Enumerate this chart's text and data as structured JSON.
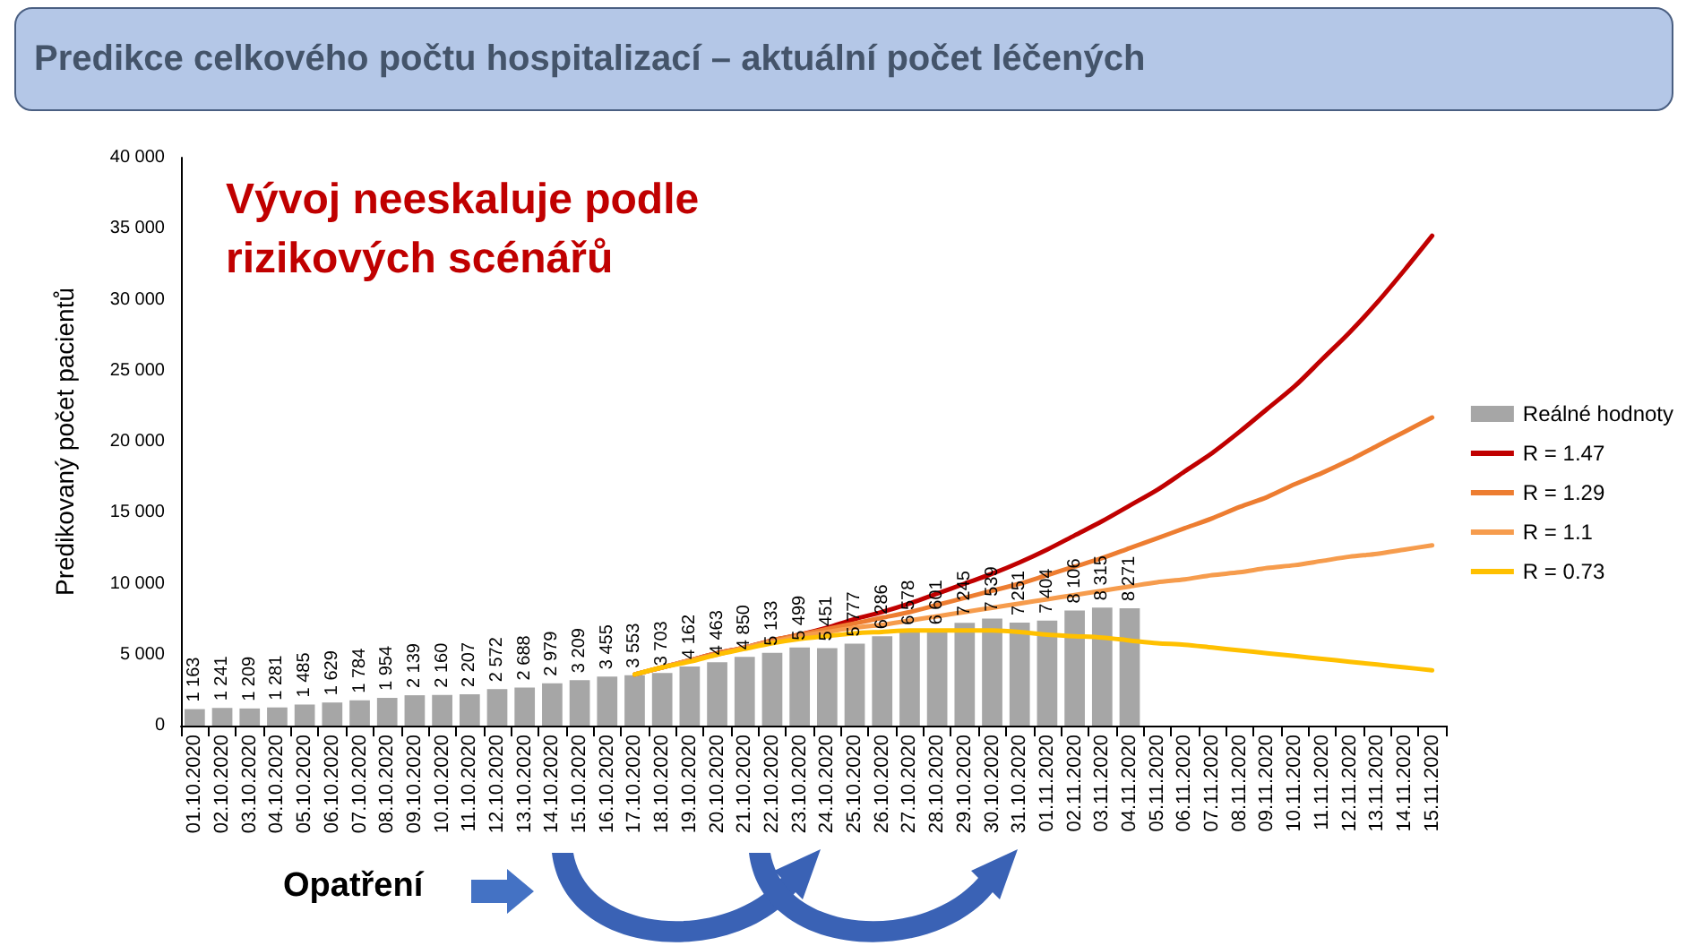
{
  "chart_data": {
    "type": "bar",
    "title": "Predikce celkového počtu hospitalizací – aktuální počet léčených",
    "ylabel": "Predikovaný počet pacientů",
    "annotations": [
      "Vývoj neeskaluje podle rizikových scénářů",
      "Opatření"
    ],
    "categories": [
      "01.10.2020",
      "02.10.2020",
      "03.10.2020",
      "04.10.2020",
      "05.10.2020",
      "06.10.2020",
      "07.10.2020",
      "08.10.2020",
      "09.10.2020",
      "10.10.2020",
      "11.10.2020",
      "12.10.2020",
      "13.10.2020",
      "14.10.2020",
      "15.10.2020",
      "16.10.2020",
      "17.10.2020",
      "18.10.2020",
      "19.10.2020",
      "20.10.2020",
      "21.10.2020",
      "22.10.2020",
      "23.10.2020",
      "24.10.2020",
      "25.10.2020",
      "26.10.2020",
      "27.10.2020",
      "28.10.2020",
      "29.10.2020",
      "30.10.2020",
      "31.10.2020",
      "01.11.2020",
      "02.11.2020",
      "03.11.2020",
      "04.11.2020",
      "05.11.2020",
      "06.11.2020",
      "07.11.2020",
      "08.11.2020",
      "09.11.2020",
      "10.11.2020",
      "11.11.2020",
      "12.11.2020",
      "13.11.2020",
      "14.11.2020",
      "15.11.2020"
    ],
    "series": [
      {
        "name": "Reálné hodnoty",
        "color": "#a6a6a6",
        "values": [
          1163,
          1241,
          1209,
          1281,
          1485,
          1629,
          1784,
          1954,
          2139,
          2160,
          2207,
          2572,
          2688,
          2979,
          3209,
          3455,
          3553,
          3703,
          4162,
          4463,
          4850,
          5133,
          5499,
          5451,
          5777,
          6286,
          6578,
          6601,
          7245,
          7539,
          7251,
          7404,
          8106,
          8315,
          8271,
          null,
          null,
          null,
          null,
          null,
          null,
          null,
          null,
          null,
          null,
          null
        ],
        "value_labels": [
          "1 163",
          "1 241",
          "1 209",
          "1 281",
          "1 485",
          "1 629",
          "1 784",
          "1 954",
          "2 139",
          "2 160",
          "2 207",
          "2 572",
          "2 688",
          "2 979",
          "3 209",
          "3 455",
          "3 553",
          "3 703",
          "4 162",
          "4 463",
          "4 850",
          "5 133",
          "5 499",
          "5 451",
          "5 777",
          "6 286",
          "6 578",
          "6 601",
          "7 245",
          "7 539",
          "7 251",
          "7 404",
          "8 106",
          "8 315",
          "8 271",
          null,
          null,
          null,
          null,
          null,
          null,
          null,
          null,
          null,
          null,
          null
        ]
      },
      {
        "name": "R = 1.47",
        "type": "line",
        "color": "#c00000",
        "values": [
          null,
          null,
          null,
          null,
          null,
          null,
          null,
          null,
          null,
          null,
          null,
          null,
          null,
          null,
          null,
          null,
          3600,
          4100,
          4600,
          5100,
          5500,
          6000,
          6400,
          6900,
          7500,
          8000,
          8600,
          9300,
          10000,
          10700,
          11500,
          12400,
          13400,
          14400,
          15500,
          16600,
          17900,
          19200,
          20700,
          22300,
          23900,
          25800,
          27700,
          29800,
          32100,
          34500
        ]
      },
      {
        "name": "R = 1.29",
        "type": "line",
        "color": "#ed7d31",
        "values": [
          null,
          null,
          null,
          null,
          null,
          null,
          null,
          null,
          null,
          null,
          null,
          null,
          null,
          null,
          null,
          null,
          3600,
          4100,
          4600,
          5100,
          5500,
          6000,
          6400,
          6800,
          7200,
          7600,
          8000,
          8500,
          9000,
          9500,
          10000,
          10600,
          11200,
          11800,
          12500,
          13200,
          13900,
          14600,
          15400,
          16100,
          17000,
          17800,
          18700,
          19700,
          20700,
          21700
        ]
      },
      {
        "name": "R = 1.1",
        "type": "line",
        "color": "#f69c4d",
        "values": [
          null,
          null,
          null,
          null,
          null,
          null,
          null,
          null,
          null,
          null,
          null,
          null,
          null,
          null,
          null,
          null,
          3600,
          4100,
          4600,
          5000,
          5500,
          5900,
          6300,
          6600,
          6900,
          7100,
          7400,
          7700,
          8000,
          8300,
          8600,
          8900,
          9200,
          9500,
          9800,
          10100,
          10300,
          10600,
          10800,
          11100,
          11300,
          11600,
          11900,
          12100,
          12400,
          12700
        ]
      },
      {
        "name": "R = 0.73",
        "type": "line",
        "color": "#ffc000",
        "values": [
          null,
          null,
          null,
          null,
          null,
          null,
          null,
          null,
          null,
          null,
          null,
          null,
          null,
          null,
          null,
          null,
          3600,
          4100,
          4500,
          5000,
          5400,
          5800,
          6100,
          6300,
          6500,
          6600,
          6700,
          6700,
          6700,
          6700,
          6600,
          6400,
          6300,
          6200,
          6000,
          5800,
          5700,
          5500,
          5300,
          5100,
          4900,
          4700,
          4500,
          4300,
          4100,
          3900
        ]
      }
    ],
    "ylim": [
      0,
      40000
    ],
    "yticks": [
      0,
      {
        "value": 5000,
        "label": "5 000"
      },
      {
        "value": 10000,
        "label": "10 000"
      },
      {
        "value": 15000,
        "label": "15 000"
      },
      {
        "value": 20000,
        "label": "20 000"
      },
      {
        "value": 25000,
        "label": "25 000"
      },
      {
        "value": 30000,
        "label": "30 000"
      },
      {
        "value": 35000,
        "label": "35 000"
      },
      {
        "value": 40000,
        "label": "40 000"
      }
    ],
    "legend": "right",
    "marker": "none"
  }
}
